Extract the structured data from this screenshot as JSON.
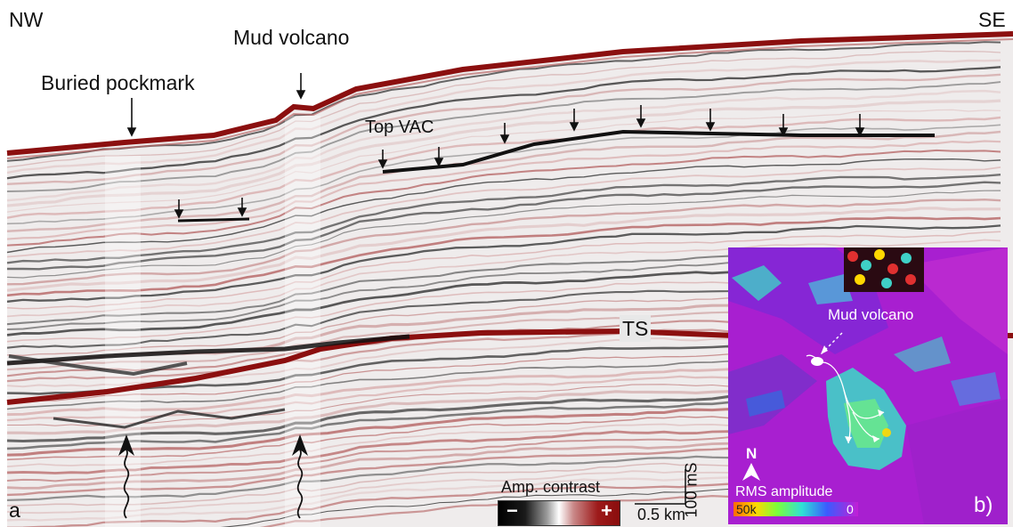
{
  "panel_a": {
    "orientation_left": "NW",
    "orientation_right": "SE",
    "labels": {
      "buried_pockmark": "Buried pockmark",
      "mud_volcano": "Mud volcano",
      "top_vac": "Top VAC",
      "ts": "TS"
    },
    "panel_letter": "a",
    "scale_vertical": "100 mS",
    "scale_horizontal": "0.5 km",
    "legend": {
      "title": "Amp. contrast",
      "minus": "−",
      "plus": "+"
    }
  },
  "panel_b": {
    "mud_volcano_label": "Mud volcano",
    "north_label": "N",
    "rms_label": "RMS amplitude",
    "scale_max": "50k",
    "scale_min": "0",
    "panel_letter": "b)"
  },
  "colors": {
    "seismic_positive": "#8b0f0f",
    "seismic_negative": "#111111",
    "background": "#ffffff",
    "inset_magenta": "#b21fd6",
    "inset_cyan": "#3fd1c7"
  }
}
